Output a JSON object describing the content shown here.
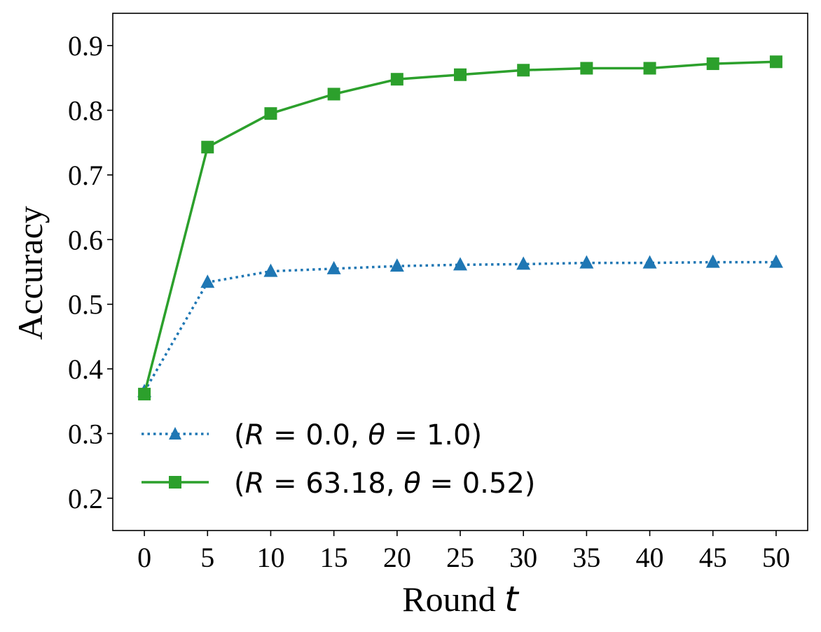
{
  "chart_data": {
    "type": "line",
    "xlabel": "Round",
    "xlabel_var": "t",
    "ylabel": "Accuracy",
    "x": [
      0,
      5,
      10,
      15,
      20,
      25,
      30,
      35,
      40,
      45,
      50
    ],
    "xlim": [
      -2.5,
      52.5
    ],
    "ylim": [
      0.15,
      0.95
    ],
    "xticks": [
      "0",
      "5",
      "10",
      "15",
      "20",
      "25",
      "30",
      "35",
      "40",
      "45",
      "50"
    ],
    "yticks": [
      "0.2",
      "0.3",
      "0.4",
      "0.5",
      "0.6",
      "0.7",
      "0.8",
      "0.9"
    ],
    "legend_position": "lower-left",
    "series": [
      {
        "name": "(R = 0.0, θ = 1.0)",
        "legend": {
          "pre": "(",
          "v1": "R",
          "mid": " = 0.0, ",
          "v2": "θ",
          "post": " = 1.0)"
        },
        "values": [
          0.365,
          0.534,
          0.551,
          0.555,
          0.559,
          0.561,
          0.562,
          0.564,
          0.564,
          0.565,
          0.565
        ],
        "color": "#1f77b4",
        "linestyle": "dotted",
        "marker": "triangle"
      },
      {
        "name": "(R = 63.18, θ = 0.52)",
        "legend": {
          "pre": "(",
          "v1": "R",
          "mid": " = 63.18, ",
          "v2": "θ",
          "post": " = 0.52)"
        },
        "values": [
          0.361,
          0.743,
          0.795,
          0.825,
          0.848,
          0.855,
          0.862,
          0.865,
          0.865,
          0.872,
          0.875
        ],
        "color": "#2ca02c",
        "linestyle": "solid",
        "marker": "square"
      }
    ]
  }
}
